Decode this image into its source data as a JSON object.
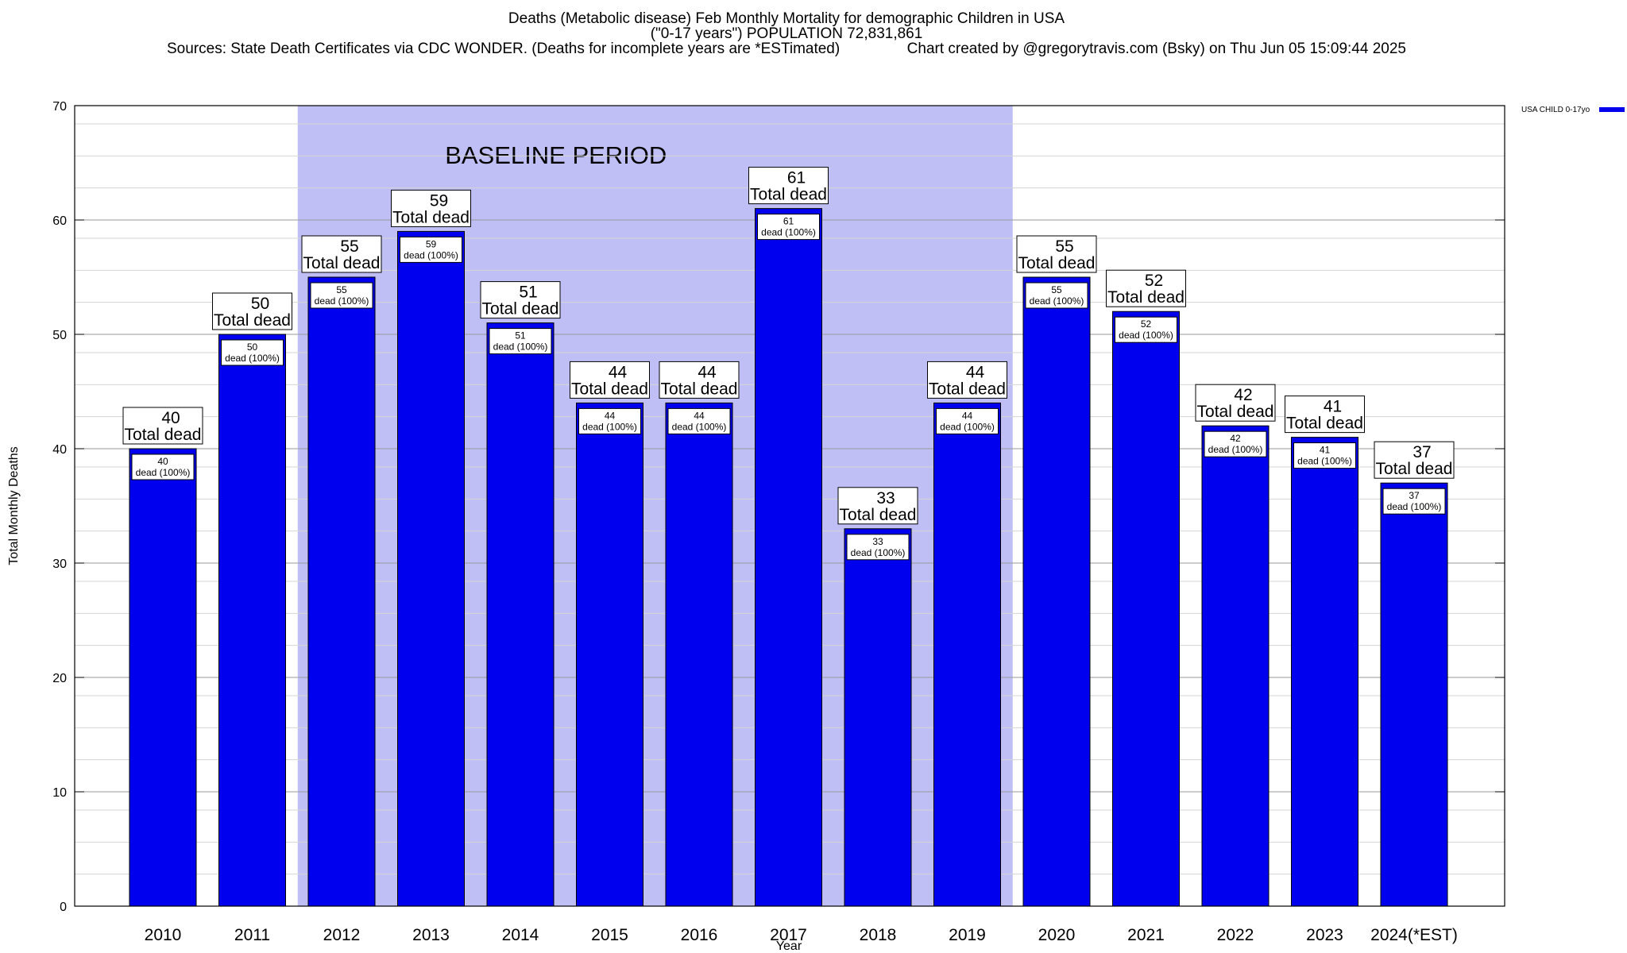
{
  "chart_data": {
    "type": "bar",
    "title_line1": "Deaths (Metabolic disease) Feb Monthly Mortality for demographic Children in USA",
    "title_line2": "(\"0-17 years\") POPULATION 72,831,861",
    "title_line3": "Sources: State Death Certificates via CDC WONDER. (Deaths for incomplete years are *ESTimated)                Chart created by @gregorytravis.com (Bsky) on Thu Jun 05 15:09:44 2025",
    "xlabel": "Year",
    "ylabel": "Total Monthly Deaths",
    "ylim": [
      0,
      70
    ],
    "yticks": [
      0,
      10,
      20,
      30,
      40,
      50,
      60,
      70
    ],
    "grid": true,
    "legend_position": "top-right",
    "categories": [
      "2010",
      "2011",
      "2012",
      "2013",
      "2014",
      "2015",
      "2016",
      "2017",
      "2018",
      "2019",
      "2020",
      "2021",
      "2022",
      "2023",
      "2024(*EST)"
    ],
    "series": [
      {
        "name": "USA CHILD 0-17yo",
        "color": "#0000ee",
        "values": [
          40,
          50,
          55,
          59,
          51,
          44,
          44,
          61,
          33,
          44,
          55,
          52,
          42,
          41,
          37
        ]
      }
    ],
    "baseline": {
      "label": "BASELINE PERIOD",
      "from": "2012",
      "to": "2019",
      "color": "#bfbff5"
    },
    "annotation_total_suffix": "Total dead",
    "annotation_inner_suffix": "dead (100%)"
  }
}
